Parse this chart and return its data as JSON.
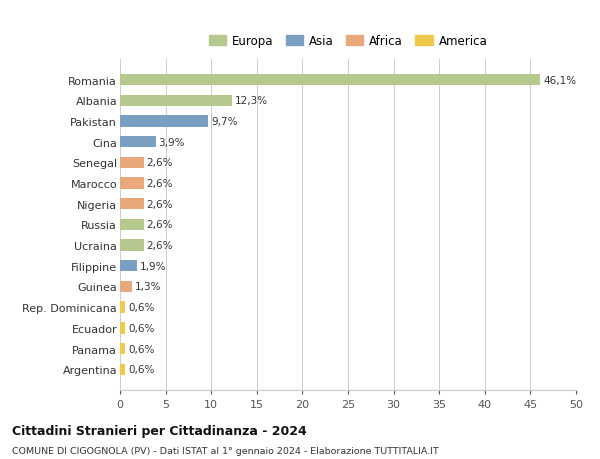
{
  "countries": [
    "Romania",
    "Albania",
    "Pakistan",
    "Cina",
    "Senegal",
    "Marocco",
    "Nigeria",
    "Russia",
    "Ucraina",
    "Filippine",
    "Guinea",
    "Rep. Dominicana",
    "Ecuador",
    "Panama",
    "Argentina"
  ],
  "values": [
    46.1,
    12.3,
    9.7,
    3.9,
    2.6,
    2.6,
    2.6,
    2.6,
    2.6,
    1.9,
    1.3,
    0.6,
    0.6,
    0.6,
    0.6
  ],
  "labels": [
    "46,1%",
    "12,3%",
    "9,7%",
    "3,9%",
    "2,6%",
    "2,6%",
    "2,6%",
    "2,6%",
    "2,6%",
    "1,9%",
    "1,3%",
    "0,6%",
    "0,6%",
    "0,6%",
    "0,6%"
  ],
  "continents": [
    "Europa",
    "Europa",
    "Asia",
    "Asia",
    "Africa",
    "Africa",
    "Africa",
    "Europa",
    "Europa",
    "Asia",
    "Africa",
    "America",
    "America",
    "America",
    "America"
  ],
  "colors": {
    "Europa": "#b5c98e",
    "Asia": "#7b9fc2",
    "Africa": "#e8a87c",
    "America": "#f0c84a"
  },
  "xlim": [
    0,
    50
  ],
  "xticks": [
    0,
    5,
    10,
    15,
    20,
    25,
    30,
    35,
    40,
    45,
    50
  ],
  "title": "Cittadini Stranieri per Cittadinanza - 2024",
  "subtitle": "COMUNE DI CIGOGNOLA (PV) - Dati ISTAT al 1° gennaio 2024 - Elaborazione TUTTITALIA.IT",
  "background_color": "#ffffff",
  "grid_color": "#cccccc",
  "bar_height": 0.55
}
